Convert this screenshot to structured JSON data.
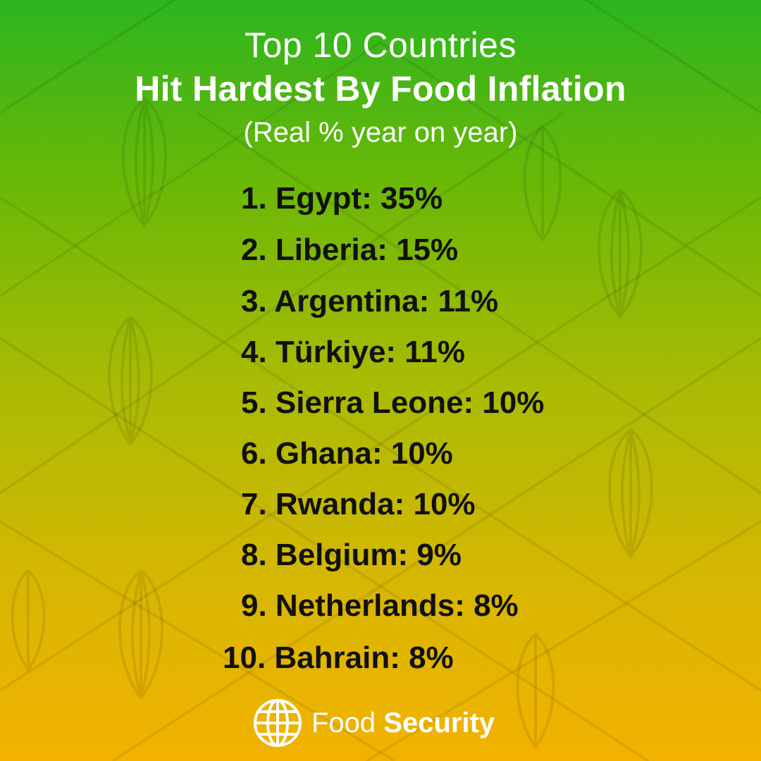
{
  "header": {
    "title_line1": "Top 10 Countries",
    "title_line2": "Hit Hardest By Food Inflation",
    "subtitle": "(Real % year on year)"
  },
  "list": {
    "items": [
      {
        "text": "1. Egypt: 35%"
      },
      {
        "text": "2. Liberia: 15%"
      },
      {
        "text": "3. Argentina: 11%"
      },
      {
        "text": "4. Türkiye: 11%"
      },
      {
        "text": "5. Sierra Leone: 10%"
      },
      {
        "text": "6. Ghana: 10%"
      },
      {
        "text": "7. Rwanda: 10%"
      },
      {
        "text": "8. Belgium: 9%"
      },
      {
        "text": "9. Netherlands: 8%"
      },
      {
        "text": "10. Bahrain: 8%"
      }
    ]
  },
  "footer": {
    "brand_light": "Food",
    "brand_bold": "Security",
    "logo_icon": "globe-icon"
  },
  "colors": {
    "gradient_top": "#2cb51f",
    "gradient_bottom": "#f3b200",
    "title_text": "#ffffff",
    "list_text": "#111111"
  }
}
